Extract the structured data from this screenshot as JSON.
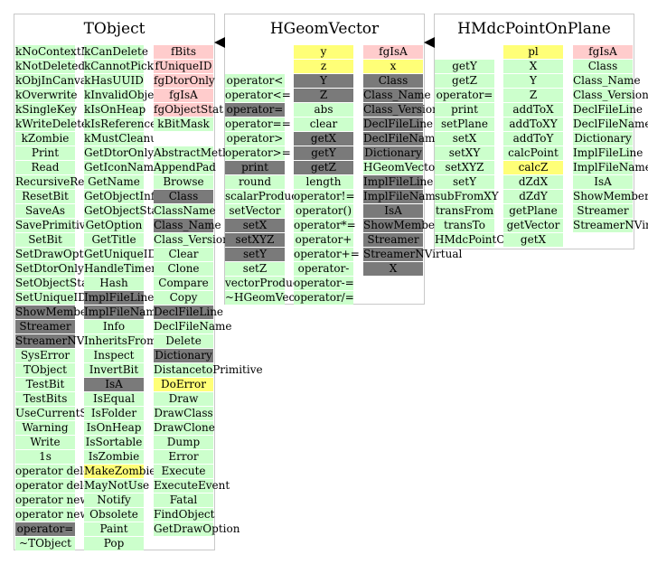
{
  "boxes": [
    {
      "name": "tobject",
      "title": "TObject",
      "columns": [
        [
          [
            "kNoContextMenu",
            "g"
          ],
          [
            "kNotDeleted",
            "g"
          ],
          [
            "kObjInCanvas",
            "g"
          ],
          [
            "kOverwrite",
            "g"
          ],
          [
            "kSingleKey",
            "g"
          ],
          [
            "kWriteDelete",
            "g"
          ],
          [
            "kZombie",
            "g"
          ],
          [
            "Print",
            "g"
          ],
          [
            "Read",
            "g"
          ],
          [
            "RecursiveRemove",
            "g"
          ],
          [
            "ResetBit",
            "g"
          ],
          [
            "SaveAs",
            "g"
          ],
          [
            "SavePrimitive",
            "g"
          ],
          [
            "SetBit",
            "g"
          ],
          [
            "SetDrawOption",
            "g"
          ],
          [
            "SetDtorOnly",
            "g"
          ],
          [
            "SetObjectStat",
            "g"
          ],
          [
            "SetUniqueID",
            "g"
          ],
          [
            "ShowMembers",
            "d"
          ],
          [
            "Streamer",
            "d"
          ],
          [
            "StreamerNVirtual",
            "d"
          ],
          [
            "SysError",
            "g"
          ],
          [
            "TObject",
            "g"
          ],
          [
            "TestBit",
            "g"
          ],
          [
            "TestBits",
            "g"
          ],
          [
            "UseCurrentStyle",
            "g"
          ],
          [
            "Warning",
            "g"
          ],
          [
            "Write",
            "g"
          ],
          [
            "1s",
            "g"
          ],
          [
            "operator delete",
            "g"
          ],
          [
            "operator delete[]",
            "g"
          ],
          [
            "operator new",
            "g"
          ],
          [
            "operator new[]",
            "g"
          ],
          [
            "operator=",
            "d"
          ],
          [
            "~TObject",
            "g"
          ]
        ],
        [
          [
            "kCanDelete",
            "g"
          ],
          [
            "kCannotPick",
            "g"
          ],
          [
            "kHasUUID",
            "g"
          ],
          [
            "kInvalidObject",
            "g"
          ],
          [
            "kIsOnHeap",
            "g"
          ],
          [
            "kIsReferenced",
            "g"
          ],
          [
            "kMustCleanup",
            "g"
          ],
          [
            "GetDtorOnly",
            "g"
          ],
          [
            "GetIconName",
            "g"
          ],
          [
            "GetName",
            "g"
          ],
          [
            "GetObjectInfo",
            "g"
          ],
          [
            "GetObjectStat",
            "g"
          ],
          [
            "GetOption",
            "g"
          ],
          [
            "GetTitle",
            "g"
          ],
          [
            "GetUniqueID",
            "g"
          ],
          [
            "HandleTimer",
            "g"
          ],
          [
            "Hash",
            "g"
          ],
          [
            "ImplFileLine",
            "d"
          ],
          [
            "ImplFileName",
            "d"
          ],
          [
            "Info",
            "g"
          ],
          [
            "InheritsFrom",
            "g"
          ],
          [
            "Inspect",
            "g"
          ],
          [
            "InvertBit",
            "g"
          ],
          [
            "IsA",
            "d"
          ],
          [
            "IsEqual",
            "g"
          ],
          [
            "IsFolder",
            "g"
          ],
          [
            "IsOnHeap",
            "g"
          ],
          [
            "IsSortable",
            "g"
          ],
          [
            "IsZombie",
            "g"
          ],
          [
            "MakeZombie",
            "y"
          ],
          [
            "MayNotUse",
            "g"
          ],
          [
            "Notify",
            "g"
          ],
          [
            "Obsolete",
            "g"
          ],
          [
            "Paint",
            "g"
          ],
          [
            "Pop",
            "g"
          ]
        ],
        [
          [
            "fBits",
            "p"
          ],
          [
            "fUniqueID",
            "p"
          ],
          [
            "fgDtorOnly",
            "p"
          ],
          [
            "fgIsA",
            "p"
          ],
          [
            "fgObjectStat",
            "p"
          ],
          [
            "kBitMask",
            "g"
          ],
          [
            "",
            "w"
          ],
          [
            "AbstractMethod",
            "g"
          ],
          [
            "AppendPad",
            "g"
          ],
          [
            "Browse",
            "g"
          ],
          [
            "Class",
            "d"
          ],
          [
            "ClassName",
            "g"
          ],
          [
            "Class_Name",
            "d"
          ],
          [
            "Class_Version",
            "g"
          ],
          [
            "Clear",
            "g"
          ],
          [
            "Clone",
            "g"
          ],
          [
            "Compare",
            "g"
          ],
          [
            "Copy",
            "g"
          ],
          [
            "DeclFileLine",
            "d"
          ],
          [
            "DeclFileName",
            "g"
          ],
          [
            "Delete",
            "g"
          ],
          [
            "Dictionary",
            "d"
          ],
          [
            "DistancetoPrimitive",
            "g"
          ],
          [
            "DoError",
            "y"
          ],
          [
            "Draw",
            "g"
          ],
          [
            "DrawClass",
            "g"
          ],
          [
            "DrawClone",
            "g"
          ],
          [
            "Dump",
            "g"
          ],
          [
            "Error",
            "g"
          ],
          [
            "Execute",
            "g"
          ],
          [
            "ExecuteEvent",
            "g"
          ],
          [
            "Fatal",
            "g"
          ],
          [
            "FindObject",
            "g"
          ],
          [
            "GetDrawOption",
            "g"
          ]
        ]
      ]
    },
    {
      "name": "hgeomvector",
      "title": "HGeomVector",
      "columns": [
        [
          [
            "",
            "w"
          ],
          [
            "",
            "w"
          ],
          [
            "operator<",
            "g"
          ],
          [
            "operator<=",
            "g"
          ],
          [
            "operator=",
            "d"
          ],
          [
            "operator==",
            "g"
          ],
          [
            "operator>",
            "g"
          ],
          [
            "operator>=",
            "g"
          ],
          [
            "print",
            "d"
          ],
          [
            "round",
            "g"
          ],
          [
            "scalarProduct",
            "g"
          ],
          [
            "setVector",
            "g"
          ],
          [
            "setX",
            "d"
          ],
          [
            "setXYZ",
            "d"
          ],
          [
            "setY",
            "d"
          ],
          [
            "setZ",
            "g"
          ],
          [
            "vectorProduct",
            "g"
          ],
          [
            "~HGeomVector",
            "g"
          ]
        ],
        [
          [
            "y",
            "y"
          ],
          [
            "z",
            "y"
          ],
          [
            "Y",
            "d"
          ],
          [
            "Z",
            "d"
          ],
          [
            "abs",
            "g"
          ],
          [
            "clear",
            "g"
          ],
          [
            "getX",
            "d"
          ],
          [
            "getY",
            "d"
          ],
          [
            "getZ",
            "d"
          ],
          [
            "length",
            "g"
          ],
          [
            "operator!=",
            "g"
          ],
          [
            "operator()",
            "g"
          ],
          [
            "operator*=",
            "g"
          ],
          [
            "operator+",
            "g"
          ],
          [
            "operator+=",
            "g"
          ],
          [
            "operator-",
            "g"
          ],
          [
            "operator-=",
            "g"
          ],
          [
            "operator/=",
            "g"
          ]
        ],
        [
          [
            "fgIsA",
            "p"
          ],
          [
            "x",
            "y"
          ],
          [
            "Class",
            "d"
          ],
          [
            "Class_Name",
            "d"
          ],
          [
            "Class_Version",
            "d"
          ],
          [
            "DeclFileLine",
            "d"
          ],
          [
            "DeclFileName",
            "d"
          ],
          [
            "Dictionary",
            "d"
          ],
          [
            "HGeomVector",
            "g"
          ],
          [
            "ImplFileLine",
            "d"
          ],
          [
            "ImplFileName",
            "d"
          ],
          [
            "IsA",
            "d"
          ],
          [
            "ShowMembers",
            "d"
          ],
          [
            "Streamer",
            "d"
          ],
          [
            "StreamerNVirtual",
            "d"
          ],
          [
            "X",
            "d"
          ]
        ]
      ]
    },
    {
      "name": "hmdcpointonplane",
      "title": "HMdcPointOnPlane",
      "columns": [
        [
          [
            "",
            "w"
          ],
          [
            "getY",
            "g"
          ],
          [
            "getZ",
            "g"
          ],
          [
            "operator=",
            "g"
          ],
          [
            "print",
            "g"
          ],
          [
            "setPlane",
            "g"
          ],
          [
            "setX",
            "g"
          ],
          [
            "setXY",
            "g"
          ],
          [
            "setXYZ",
            "g"
          ],
          [
            "setY",
            "g"
          ],
          [
            "subFromXY",
            "g"
          ],
          [
            "transFrom",
            "g"
          ],
          [
            "transTo",
            "g"
          ],
          [
            "HMdcPointOnPlane",
            "g"
          ]
        ],
        [
          [
            "pl",
            "y"
          ],
          [
            "X",
            "g"
          ],
          [
            "Y",
            "g"
          ],
          [
            "Z",
            "g"
          ],
          [
            "addToX",
            "g"
          ],
          [
            "addToXY",
            "g"
          ],
          [
            "addToY",
            "g"
          ],
          [
            "calcPoint",
            "g"
          ],
          [
            "calcZ",
            "y"
          ],
          [
            "dZdX",
            "g"
          ],
          [
            "dZdY",
            "g"
          ],
          [
            "getPlane",
            "g"
          ],
          [
            "getVector",
            "g"
          ],
          [
            "getX",
            "g"
          ]
        ],
        [
          [
            "fgIsA",
            "p"
          ],
          [
            "Class",
            "g"
          ],
          [
            "Class_Name",
            "g"
          ],
          [
            "Class_Version",
            "g"
          ],
          [
            "DeclFileLine",
            "g"
          ],
          [
            "DeclFileName",
            "g"
          ],
          [
            "Dictionary",
            "g"
          ],
          [
            "ImplFileLine",
            "g"
          ],
          [
            "ImplFileName",
            "g"
          ],
          [
            "IsA",
            "g"
          ],
          [
            "ShowMembers",
            "g"
          ],
          [
            "Streamer",
            "g"
          ],
          [
            "StreamerNVirtual",
            "g"
          ]
        ]
      ]
    }
  ],
  "arrows": [
    "inherits-arrow-hgeomvector-to-tobject",
    "inherits-arrow-hmdcpointonplane-to-hgeomvector"
  ]
}
